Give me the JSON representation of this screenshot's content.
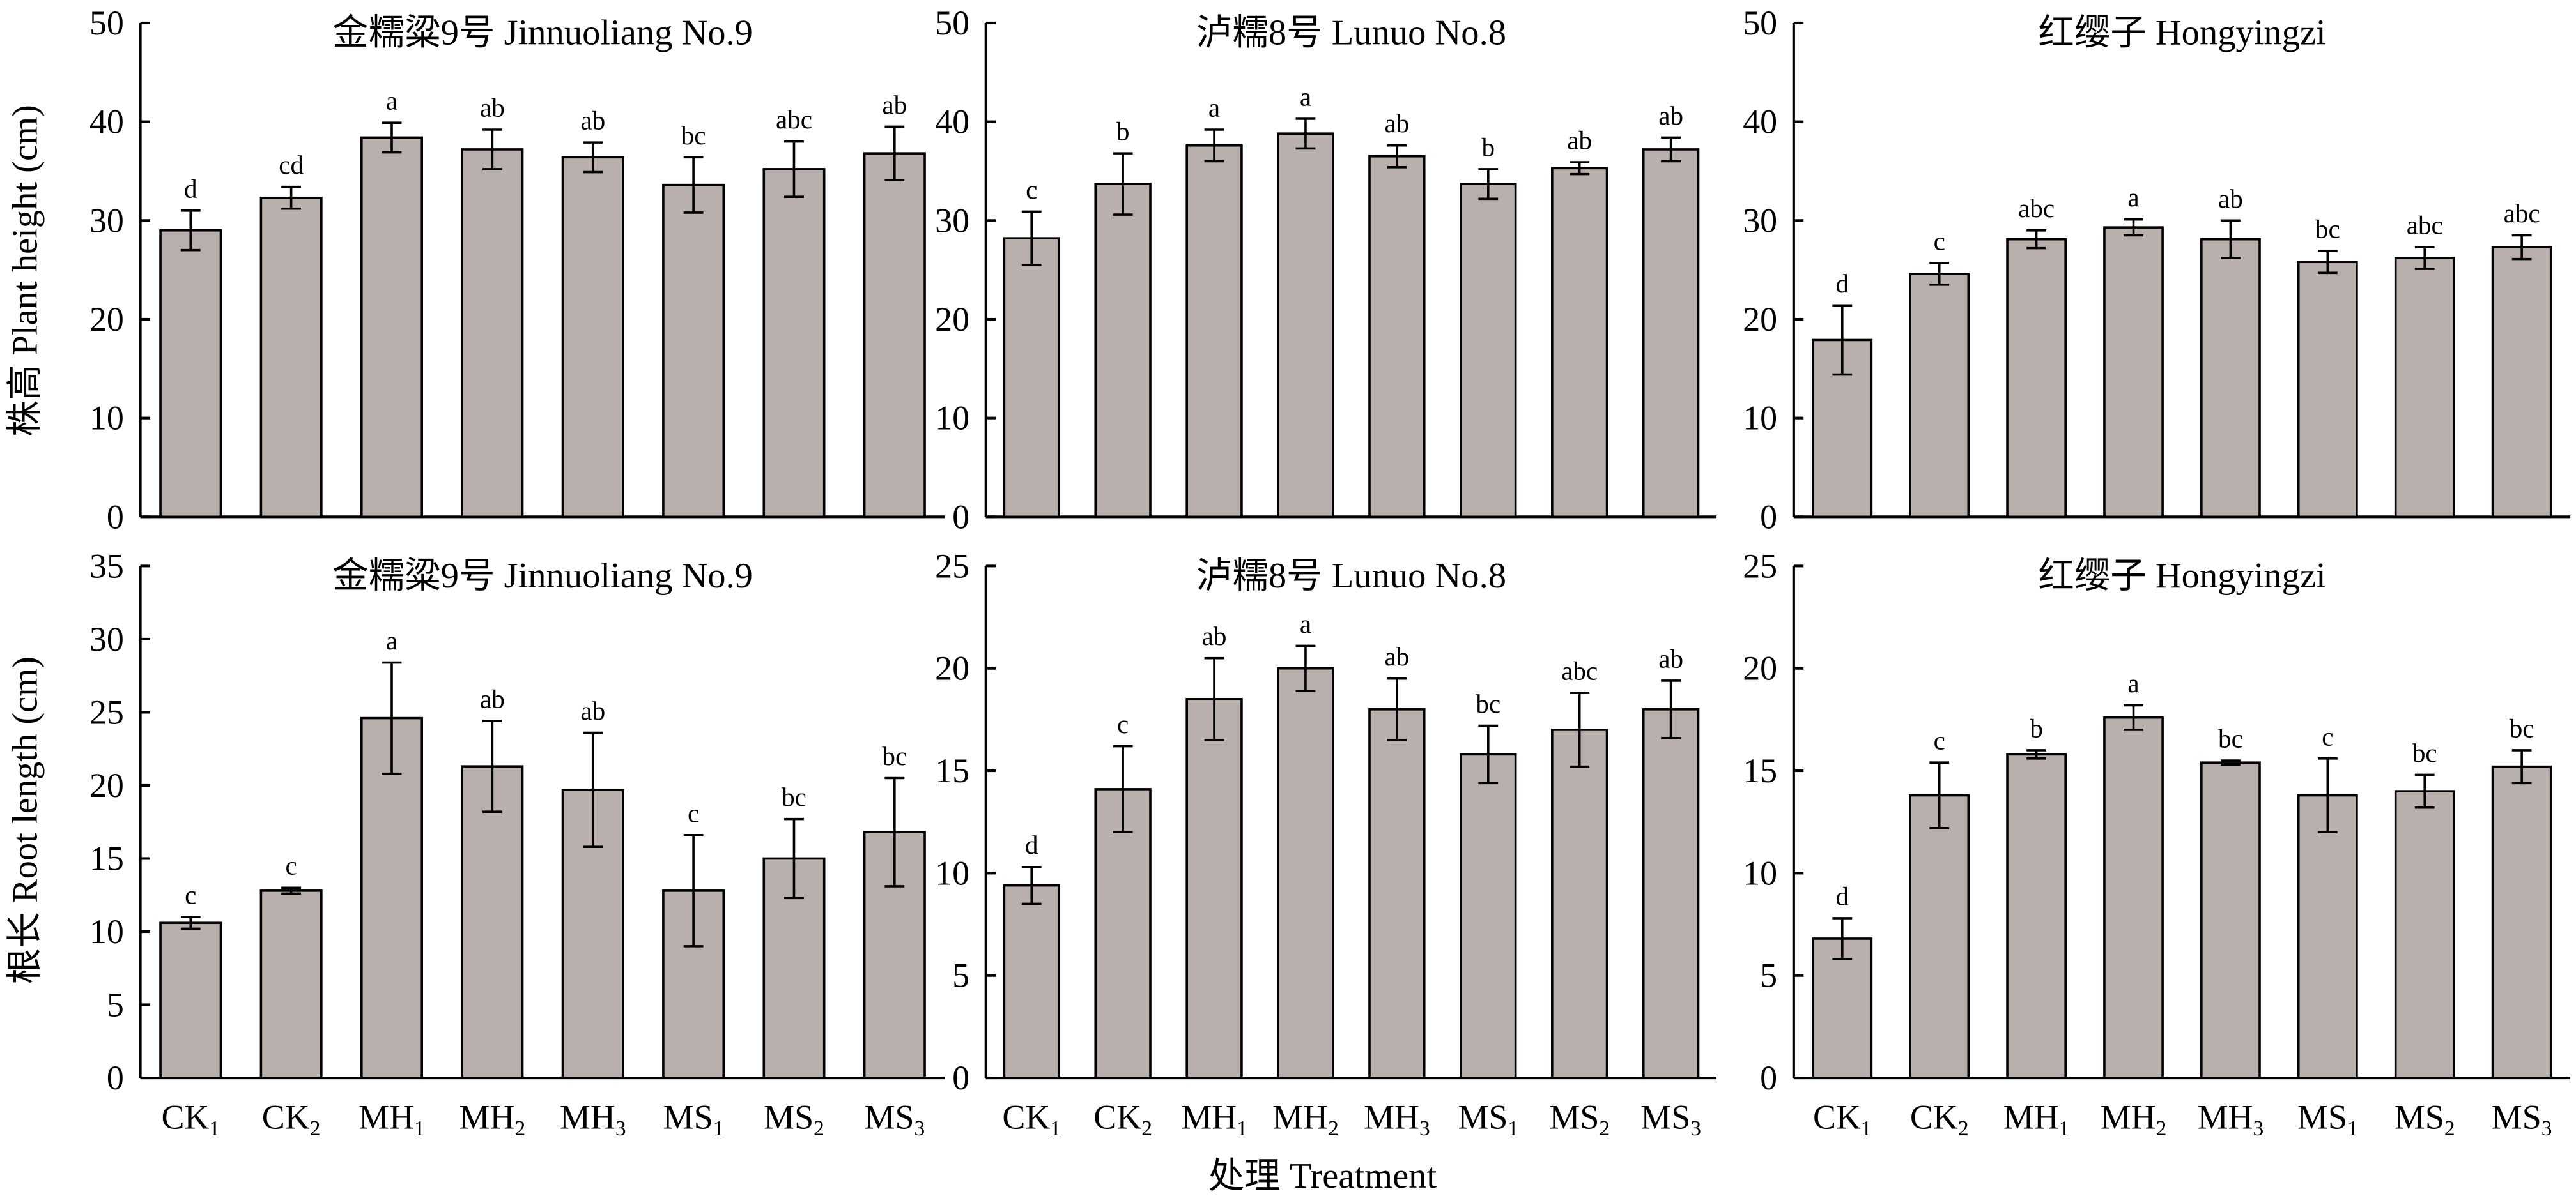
{
  "bar_color": "#b9b0ad",
  "chart_data": {
    "type": "bar",
    "categories": [
      "CK1",
      "CK2",
      "MH1",
      "MH2",
      "MH3",
      "MS1",
      "MS2",
      "MS3"
    ],
    "category_labels": [
      [
        "CK",
        "1"
      ],
      [
        "CK",
        "2"
      ],
      [
        "MH",
        "1"
      ],
      [
        "MH",
        "2"
      ],
      [
        "MH",
        "3"
      ],
      [
        "MS",
        "1"
      ],
      [
        "MS",
        "2"
      ],
      [
        "MS",
        "3"
      ]
    ],
    "xlabel": "处理 Treatment",
    "row_labels": [
      "株高 Plant height (cm)",
      "根长 Root length (cm)"
    ],
    "panels": [
      {
        "row": 0,
        "col": 0,
        "title": "金糯粱9号 Jinnuoliang No.9",
        "ylim": [
          0,
          50
        ],
        "yticks": [
          0,
          10,
          20,
          30,
          40,
          50
        ],
        "values": [
          29.0,
          32.3,
          38.4,
          37.2,
          36.4,
          33.6,
          35.2,
          36.8
        ],
        "errors": [
          2.0,
          1.1,
          1.5,
          2.0,
          1.5,
          2.8,
          2.8,
          2.7
        ],
        "letters": [
          "d",
          "cd",
          "a",
          "ab",
          "ab",
          "bc",
          "abc",
          "ab"
        ]
      },
      {
        "row": 0,
        "col": 1,
        "title": "泸糯8号 Lunuo No.8",
        "ylim": [
          0,
          50
        ],
        "yticks": [
          0,
          10,
          20,
          30,
          40,
          50
        ],
        "values": [
          28.2,
          33.7,
          37.6,
          38.8,
          36.5,
          33.7,
          35.3,
          37.2
        ],
        "errors": [
          2.7,
          3.1,
          1.6,
          1.5,
          1.1,
          1.5,
          0.6,
          1.2
        ],
        "letters": [
          "c",
          "b",
          "a",
          "a",
          "ab",
          "b",
          "ab",
          "ab"
        ]
      },
      {
        "row": 0,
        "col": 2,
        "title": "红缨子 Hongyingzi",
        "ylim": [
          0,
          50
        ],
        "yticks": [
          0,
          10,
          20,
          30,
          40,
          50
        ],
        "values": [
          17.9,
          24.6,
          28.1,
          29.3,
          28.1,
          25.8,
          26.2,
          27.3
        ],
        "errors": [
          3.5,
          1.1,
          0.9,
          0.8,
          1.9,
          1.1,
          1.1,
          1.2
        ],
        "letters": [
          "d",
          "c",
          "abc",
          "a",
          "ab",
          "bc",
          "abc",
          "abc"
        ]
      },
      {
        "row": 1,
        "col": 0,
        "title": "金糯粱9号 Jinnuoliang No.9",
        "ylim": [
          0,
          35
        ],
        "yticks": [
          0,
          5,
          10,
          15,
          20,
          25,
          30,
          35
        ],
        "values": [
          10.6,
          12.8,
          24.6,
          21.3,
          19.7,
          12.8,
          15.0,
          16.8
        ],
        "errors": [
          0.4,
          0.2,
          3.8,
          3.1,
          3.9,
          3.8,
          2.7,
          3.7
        ],
        "letters": [
          "c",
          "c",
          "a",
          "ab",
          "ab",
          "c",
          "bc",
          "bc"
        ]
      },
      {
        "row": 1,
        "col": 1,
        "title": "泸糯8号 Lunuo No.8",
        "ylim": [
          0,
          25
        ],
        "yticks": [
          0,
          5,
          10,
          15,
          20,
          25
        ],
        "values": [
          9.4,
          14.1,
          18.5,
          20.0,
          18.0,
          15.8,
          17.0,
          18.0
        ],
        "errors": [
          0.9,
          2.1,
          2.0,
          1.1,
          1.5,
          1.4,
          1.8,
          1.4
        ],
        "letters": [
          "d",
          "c",
          "ab",
          "a",
          "ab",
          "bc",
          "abc",
          "ab"
        ]
      },
      {
        "row": 1,
        "col": 2,
        "title": "红缨子 Hongyingzi",
        "ylim": [
          0,
          25
        ],
        "yticks": [
          0,
          5,
          10,
          15,
          20,
          25
        ],
        "values": [
          6.8,
          13.8,
          15.8,
          17.6,
          15.4,
          13.8,
          14.0,
          15.2
        ],
        "errors": [
          1.0,
          1.6,
          0.2,
          0.6,
          0.1,
          1.8,
          0.8,
          0.8
        ],
        "letters": [
          "d",
          "c",
          "b",
          "a",
          "bc",
          "c",
          "bc",
          "bc"
        ]
      }
    ]
  }
}
